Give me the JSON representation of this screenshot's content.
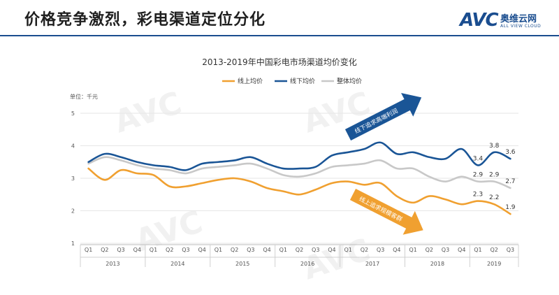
{
  "header": {
    "title": "价格竞争激烈，彩电渠道定位分化"
  },
  "logo": {
    "mark": "AVC",
    "cn": "奥维云网",
    "en": "ALL VIEW CLOUD"
  },
  "chart_data": {
    "type": "line",
    "title": "2013-2019年中国彩电市场渠道均价变化",
    "ylabel": "单位：千元",
    "ylim": [
      1,
      5
    ],
    "yticks": [
      1,
      2,
      3,
      4,
      5
    ],
    "quarters": [
      "Q1",
      "Q2",
      "Q3",
      "Q4",
      "Q1",
      "Q2",
      "Q3",
      "Q4",
      "Q1",
      "Q2",
      "Q3",
      "Q4",
      "Q1",
      "Q2",
      "Q3",
      "Q4",
      "Q1",
      "Q2",
      "Q3",
      "Q4",
      "Q1",
      "Q2",
      "Q3",
      "Q4",
      "Q1",
      "Q2",
      "Q3"
    ],
    "years": [
      {
        "label": "2013",
        "start": 0,
        "end": 3
      },
      {
        "label": "2014",
        "start": 4,
        "end": 7
      },
      {
        "label": "2015",
        "start": 8,
        "end": 11
      },
      {
        "label": "2016",
        "start": 12,
        "end": 15
      },
      {
        "label": "2017",
        "start": 16,
        "end": 19
      },
      {
        "label": "2018",
        "start": 20,
        "end": 23
      },
      {
        "label": "2019",
        "start": 24,
        "end": 26
      }
    ],
    "series": [
      {
        "name": "线上均价",
        "color": "#f0a030",
        "values": [
          3.3,
          2.95,
          3.25,
          3.15,
          3.1,
          2.75,
          2.75,
          2.85,
          2.95,
          3.0,
          2.9,
          2.7,
          2.6,
          2.5,
          2.65,
          2.85,
          2.9,
          2.8,
          2.85,
          2.45,
          2.25,
          2.45,
          2.35,
          2.2,
          2.3,
          2.2,
          1.9
        ]
      },
      {
        "name": "线下均价",
        "color": "#1a5596",
        "values": [
          3.5,
          3.75,
          3.65,
          3.5,
          3.4,
          3.35,
          3.25,
          3.45,
          3.5,
          3.55,
          3.65,
          3.45,
          3.3,
          3.3,
          3.35,
          3.7,
          3.8,
          3.9,
          4.1,
          3.75,
          3.8,
          3.65,
          3.6,
          3.9,
          3.4,
          3.8,
          3.6
        ]
      },
      {
        "name": "整体均价",
        "color": "#c8c8c8",
        "values": [
          3.45,
          3.65,
          3.55,
          3.4,
          3.3,
          3.25,
          3.15,
          3.3,
          3.35,
          3.4,
          3.45,
          3.3,
          3.1,
          3.05,
          3.15,
          3.35,
          3.4,
          3.45,
          3.55,
          3.3,
          3.3,
          3.05,
          2.9,
          3.05,
          2.9,
          2.9,
          2.7
        ]
      }
    ],
    "data_labels": [
      {
        "series": 1,
        "index": 24,
        "text": "3.4"
      },
      {
        "series": 1,
        "index": 25,
        "text": "3.8"
      },
      {
        "series": 1,
        "index": 26,
        "text": "3.6"
      },
      {
        "series": 2,
        "index": 24,
        "text": "2.9"
      },
      {
        "series": 2,
        "index": 25,
        "text": "2.9"
      },
      {
        "series": 2,
        "index": 26,
        "text": "2.7"
      },
      {
        "series": 0,
        "index": 24,
        "text": "2.3"
      },
      {
        "series": 0,
        "index": 25,
        "text": "2.2"
      },
      {
        "series": 0,
        "index": 26,
        "text": "1.9"
      }
    ],
    "annotations": [
      {
        "text": "线下追求高端利润",
        "color": "#1a5596",
        "direction": "up"
      },
      {
        "text": "线上追求规模客群",
        "color": "#f0a030",
        "direction": "down"
      }
    ]
  }
}
